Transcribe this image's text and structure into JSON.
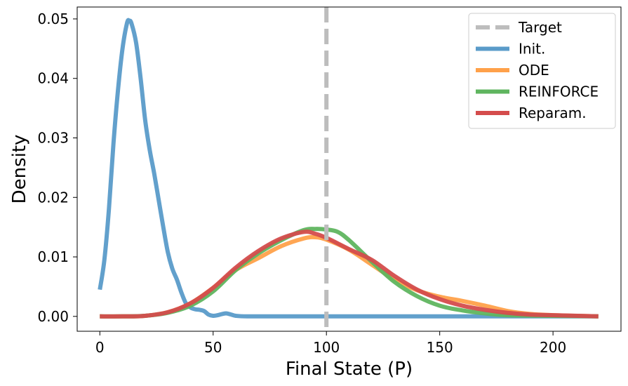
{
  "chart_data": {
    "type": "line",
    "xlabel": "Final State (P)",
    "ylabel": "Density",
    "xlim": [
      -10,
      230
    ],
    "ylim": [
      -0.0025,
      0.052
    ],
    "xticks": [
      0,
      50,
      100,
      150,
      200
    ],
    "xtick_labels": [
      "0",
      "50",
      "100",
      "150",
      "200"
    ],
    "yticks": [
      0.0,
      0.01,
      0.02,
      0.03,
      0.04,
      0.05
    ],
    "ytick_labels": [
      "0.00",
      "0.01",
      "0.02",
      "0.03",
      "0.04",
      "0.05"
    ],
    "grid": false,
    "legend_position": "top-right",
    "target": {
      "name": "Target",
      "x": 100,
      "color": "#bdbdbd",
      "style": "dashed"
    },
    "series": [
      {
        "name": "Init.",
        "color": "#5a9bc9",
        "x": [
          0,
          2,
          4,
          6,
          8,
          10,
          12,
          13,
          14,
          16,
          18,
          20,
          22,
          24,
          26,
          28,
          30,
          32,
          34,
          36,
          38,
          40,
          42,
          44,
          46,
          48,
          50,
          52,
          54,
          56,
          58,
          60,
          65,
          80,
          100,
          150,
          220
        ],
        "y": [
          0.0045,
          0.0095,
          0.018,
          0.029,
          0.038,
          0.045,
          0.0493,
          0.0497,
          0.0492,
          0.046,
          0.04,
          0.033,
          0.028,
          0.024,
          0.0195,
          0.015,
          0.0108,
          0.008,
          0.0062,
          0.004,
          0.0022,
          0.0015,
          0.0012,
          0.0011,
          0.0009,
          0.0003,
          0.0001,
          0.0002,
          0.0004,
          0.0005,
          0.0003,
          0.0001,
          0.0,
          0.0,
          0.0,
          0.0,
          0.0
        ]
      },
      {
        "name": "ODE",
        "color": "#ffa14a",
        "x": [
          0,
          10,
          20,
          30,
          40,
          50,
          60,
          70,
          80,
          90,
          95,
          100,
          110,
          120,
          130,
          140,
          150,
          160,
          170,
          180,
          190,
          200,
          210,
          220
        ],
        "y": [
          0.0,
          0.0,
          0.0001,
          0.0007,
          0.0022,
          0.0048,
          0.0078,
          0.0098,
          0.0118,
          0.0131,
          0.0133,
          0.0129,
          0.0112,
          0.0087,
          0.0062,
          0.0044,
          0.0033,
          0.0026,
          0.0018,
          0.0009,
          0.0004,
          0.0002,
          0.0001,
          0.0
        ]
      },
      {
        "name": "REINFORCE",
        "color": "#5fb55f",
        "x": [
          0,
          10,
          20,
          30,
          40,
          50,
          60,
          70,
          80,
          90,
          95,
          100,
          105,
          110,
          120,
          130,
          140,
          150,
          160,
          170,
          180,
          200,
          220
        ],
        "y": [
          0.0,
          0.0,
          0.0001,
          0.0006,
          0.0018,
          0.0042,
          0.0078,
          0.0106,
          0.0128,
          0.0145,
          0.0147,
          0.0146,
          0.0142,
          0.0128,
          0.0092,
          0.0058,
          0.0034,
          0.0018,
          0.001,
          0.0005,
          0.0002,
          0.0001,
          0.0
        ]
      },
      {
        "name": "Reparam.",
        "color": "#d44c4c",
        "x": [
          0,
          10,
          20,
          30,
          40,
          50,
          60,
          70,
          80,
          90,
          95,
          100,
          110,
          120,
          130,
          140,
          150,
          160,
          170,
          180,
          190,
          200,
          220
        ],
        "y": [
          0.0,
          0.0,
          0.0001,
          0.0007,
          0.0022,
          0.0048,
          0.0082,
          0.011,
          0.0131,
          0.0142,
          0.0139,
          0.0132,
          0.0113,
          0.0095,
          0.0068,
          0.0045,
          0.0029,
          0.0018,
          0.0011,
          0.0006,
          0.0003,
          0.0002,
          0.0
        ]
      }
    ]
  }
}
